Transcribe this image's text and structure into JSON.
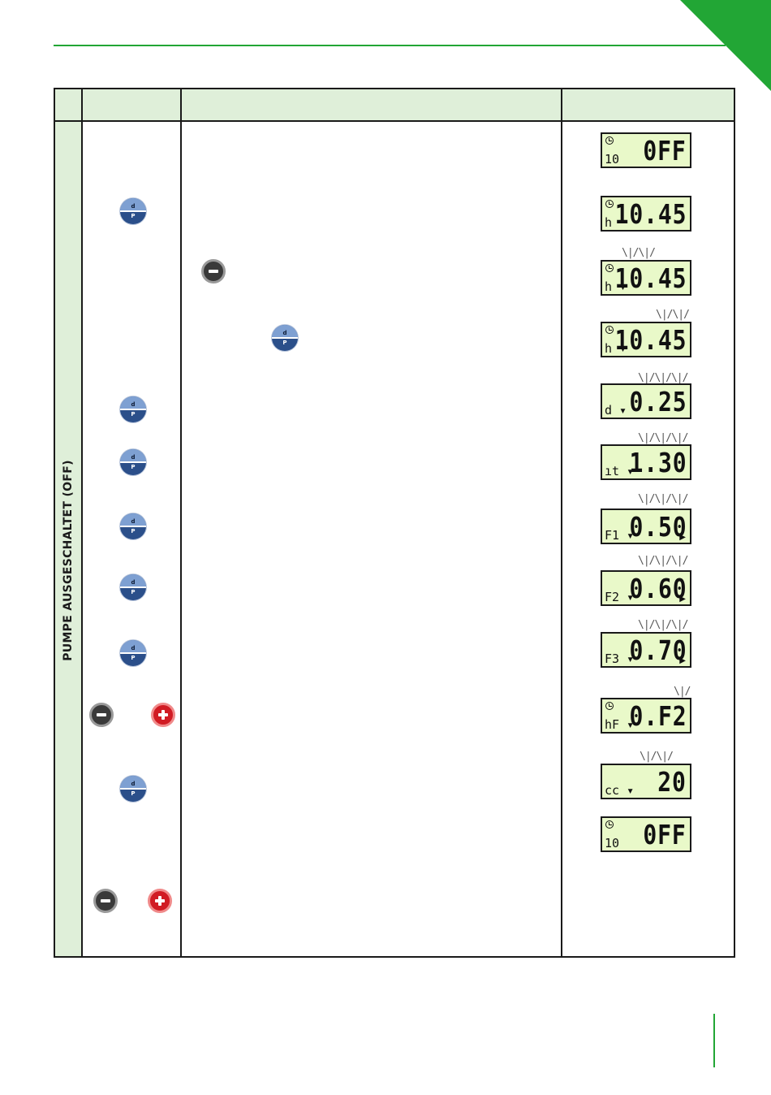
{
  "side_label": "PUMPE AUSGESCHALTET (OFF)",
  "knob": {
    "top": "d",
    "bottom": "P"
  },
  "displays": [
    {
      "main": "0FF",
      "sub": "10",
      "clock": true
    },
    {
      "main": "10.45",
      "sub": "h",
      "clock": true
    },
    {
      "main": "10.45",
      "sub": "h ▾",
      "clock": true
    },
    {
      "main": "10.45",
      "sub": "h ▾",
      "clock": true
    },
    {
      "main": "0.25",
      "sub": "d ▾"
    },
    {
      "main": "1.30",
      "sub": "ıt ▾"
    },
    {
      "main": "0.50",
      "sub": "F1 ▾",
      "arrow": "▶"
    },
    {
      "main": "0.60",
      "sub": "F2 ▾",
      "arrow": "▶"
    },
    {
      "main": "0.70",
      "sub": "F3 ▾",
      "arrow": "▶"
    },
    {
      "main": "0.F2",
      "sub": "hF ▾",
      "clock": true
    },
    {
      "main": "20",
      "sub": "cc ▾"
    },
    {
      "main": "0FF",
      "sub": "10",
      "clock": true
    }
  ],
  "blink": {
    "one": "\\|/\\|/",
    "two": "\\|/\\|/\\|/",
    "three": "\\|/\\|/\\|/",
    "single": "\\|/"
  }
}
